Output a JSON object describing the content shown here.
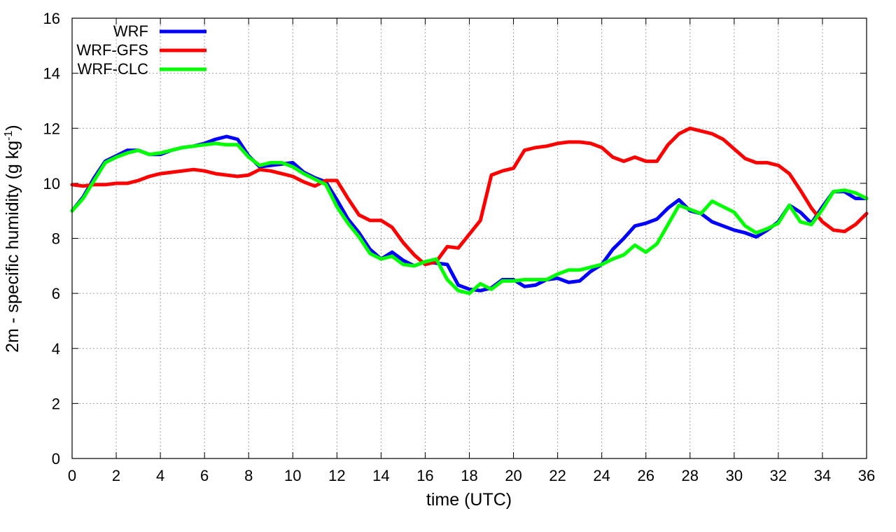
{
  "chart_data": {
    "type": "line",
    "xlabel": "time (UTC)",
    "ylabel": {
      "text": "2m - specific humidity (g kg",
      "sup": "-1",
      "close": ")"
    },
    "xlim": [
      0,
      36
    ],
    "ylim": [
      0,
      16
    ],
    "x_ticks": [
      "0",
      "2",
      "4",
      "6",
      "8",
      "10",
      "12",
      "14",
      "16",
      "18",
      "20",
      "22",
      "24",
      "26",
      "28",
      "30",
      "32",
      "34",
      "36"
    ],
    "y_ticks": [
      "0",
      "2",
      "4",
      "6",
      "8",
      "10",
      "12",
      "14",
      "16"
    ],
    "grid": true,
    "legend_position": "top-left",
    "series": [
      {
        "name": "WRF",
        "color": "#0000ff",
        "x": [
          0,
          0.5,
          1,
          1.5,
          2,
          2.5,
          3,
          3.5,
          4,
          4.5,
          5,
          5.5,
          6,
          6.5,
          7,
          7.5,
          8,
          8.5,
          9,
          9.5,
          10,
          10.5,
          11,
          11.5,
          12,
          12.5,
          13,
          13.5,
          14,
          14.5,
          15,
          15.5,
          16,
          16.5,
          17,
          17.5,
          18,
          18.5,
          19,
          19.5,
          20,
          20.5,
          21,
          21.5,
          22,
          22.5,
          23,
          23.5,
          24,
          24.5,
          25,
          25.5,
          26,
          26.5,
          27,
          27.5,
          28,
          28.5,
          29,
          29.5,
          30,
          30.5,
          31,
          31.5,
          32,
          32.5,
          33,
          33.5,
          34,
          34.5,
          35,
          35.5,
          36
        ],
        "y": [
          9.0,
          9.5,
          10.2,
          10.8,
          11.0,
          11.2,
          11.2,
          11.05,
          11.05,
          11.2,
          11.3,
          11.35,
          11.45,
          11.6,
          11.7,
          11.6,
          11.0,
          10.6,
          10.65,
          10.7,
          10.75,
          10.4,
          10.2,
          10.05,
          9.4,
          8.7,
          8.2,
          7.6,
          7.25,
          7.5,
          7.2,
          7.0,
          7.15,
          7.1,
          7.05,
          6.3,
          6.15,
          6.1,
          6.2,
          6.5,
          6.5,
          6.25,
          6.3,
          6.5,
          6.55,
          6.4,
          6.45,
          6.8,
          7.05,
          7.6,
          8.0,
          8.45,
          8.55,
          8.7,
          9.1,
          9.4,
          9.0,
          8.9,
          8.6,
          8.45,
          8.3,
          8.2,
          8.05,
          8.3,
          8.6,
          9.2,
          8.95,
          8.55,
          9.15,
          9.7,
          9.7,
          9.45,
          9.45
        ]
      },
      {
        "name": "WRF-GFS",
        "color": "#ff0000",
        "x": [
          0,
          0.5,
          1,
          1.5,
          2,
          2.5,
          3,
          3.5,
          4,
          4.5,
          5,
          5.5,
          6,
          6.5,
          7,
          7.5,
          8,
          8.5,
          9,
          9.5,
          10,
          10.5,
          11,
          11.5,
          12,
          12.5,
          13,
          13.5,
          14,
          14.5,
          15,
          15.5,
          16,
          16.5,
          17,
          17.5,
          18,
          18.5,
          19,
          19.5,
          20,
          20.5,
          21,
          21.5,
          22,
          22.5,
          23,
          23.5,
          24,
          24.5,
          25,
          25.5,
          26,
          26.5,
          27,
          27.5,
          28,
          28.5,
          29,
          29.5,
          30,
          30.5,
          31,
          31.5,
          32,
          32.5,
          33,
          33.5,
          34,
          34.5,
          35,
          35.5,
          36
        ],
        "y": [
          9.95,
          9.9,
          9.95,
          9.95,
          10.0,
          10.0,
          10.1,
          10.25,
          10.35,
          10.4,
          10.45,
          10.5,
          10.45,
          10.35,
          10.3,
          10.25,
          10.3,
          10.5,
          10.45,
          10.35,
          10.25,
          10.05,
          9.9,
          10.1,
          10.1,
          9.45,
          8.85,
          8.65,
          8.65,
          8.4,
          7.85,
          7.4,
          7.05,
          7.15,
          7.7,
          7.65,
          8.15,
          8.65,
          10.3,
          10.45,
          10.55,
          11.2,
          11.3,
          11.35,
          11.45,
          11.5,
          11.5,
          11.45,
          11.3,
          10.95,
          10.8,
          10.95,
          10.8,
          10.8,
          11.4,
          11.8,
          12.0,
          11.9,
          11.8,
          11.6,
          11.25,
          10.9,
          10.75,
          10.75,
          10.65,
          10.35,
          9.75,
          9.1,
          8.6,
          8.3,
          8.25,
          8.5,
          8.9
        ]
      },
      {
        "name": "WRF-CLC",
        "color": "#00ff00",
        "x": [
          0,
          0.5,
          1,
          1.5,
          2,
          2.5,
          3,
          3.5,
          4,
          4.5,
          5,
          5.5,
          6,
          6.5,
          7,
          7.5,
          8,
          8.5,
          9,
          9.5,
          10,
          10.5,
          11,
          11.5,
          12,
          12.5,
          13,
          13.5,
          14,
          14.5,
          15,
          15.5,
          16,
          16.5,
          17,
          17.5,
          18,
          18.5,
          19,
          19.5,
          20,
          20.5,
          21,
          21.5,
          22,
          22.5,
          23,
          23.5,
          24,
          24.5,
          25,
          25.5,
          26,
          26.5,
          27,
          27.5,
          28,
          28.5,
          29,
          29.5,
          30,
          30.5,
          31,
          31.5,
          32,
          32.5,
          33,
          33.5,
          34,
          34.5,
          35,
          35.5,
          36
        ],
        "y": [
          9.0,
          9.45,
          10.1,
          10.75,
          10.95,
          11.1,
          11.2,
          11.05,
          11.1,
          11.2,
          11.3,
          11.35,
          11.4,
          11.45,
          11.4,
          11.4,
          10.95,
          10.65,
          10.75,
          10.75,
          10.6,
          10.35,
          10.15,
          9.95,
          9.15,
          8.55,
          8.05,
          7.45,
          7.25,
          7.35,
          7.05,
          7.0,
          7.15,
          7.25,
          6.5,
          6.1,
          6.0,
          6.35,
          6.15,
          6.45,
          6.45,
          6.5,
          6.5,
          6.5,
          6.7,
          6.85,
          6.85,
          6.95,
          7.05,
          7.25,
          7.4,
          7.75,
          7.5,
          7.8,
          8.5,
          9.2,
          9.05,
          8.9,
          9.35,
          9.15,
          8.95,
          8.45,
          8.2,
          8.35,
          8.55,
          9.2,
          8.6,
          8.5,
          9.05,
          9.7,
          9.75,
          9.65,
          9.45
        ]
      }
    ]
  }
}
